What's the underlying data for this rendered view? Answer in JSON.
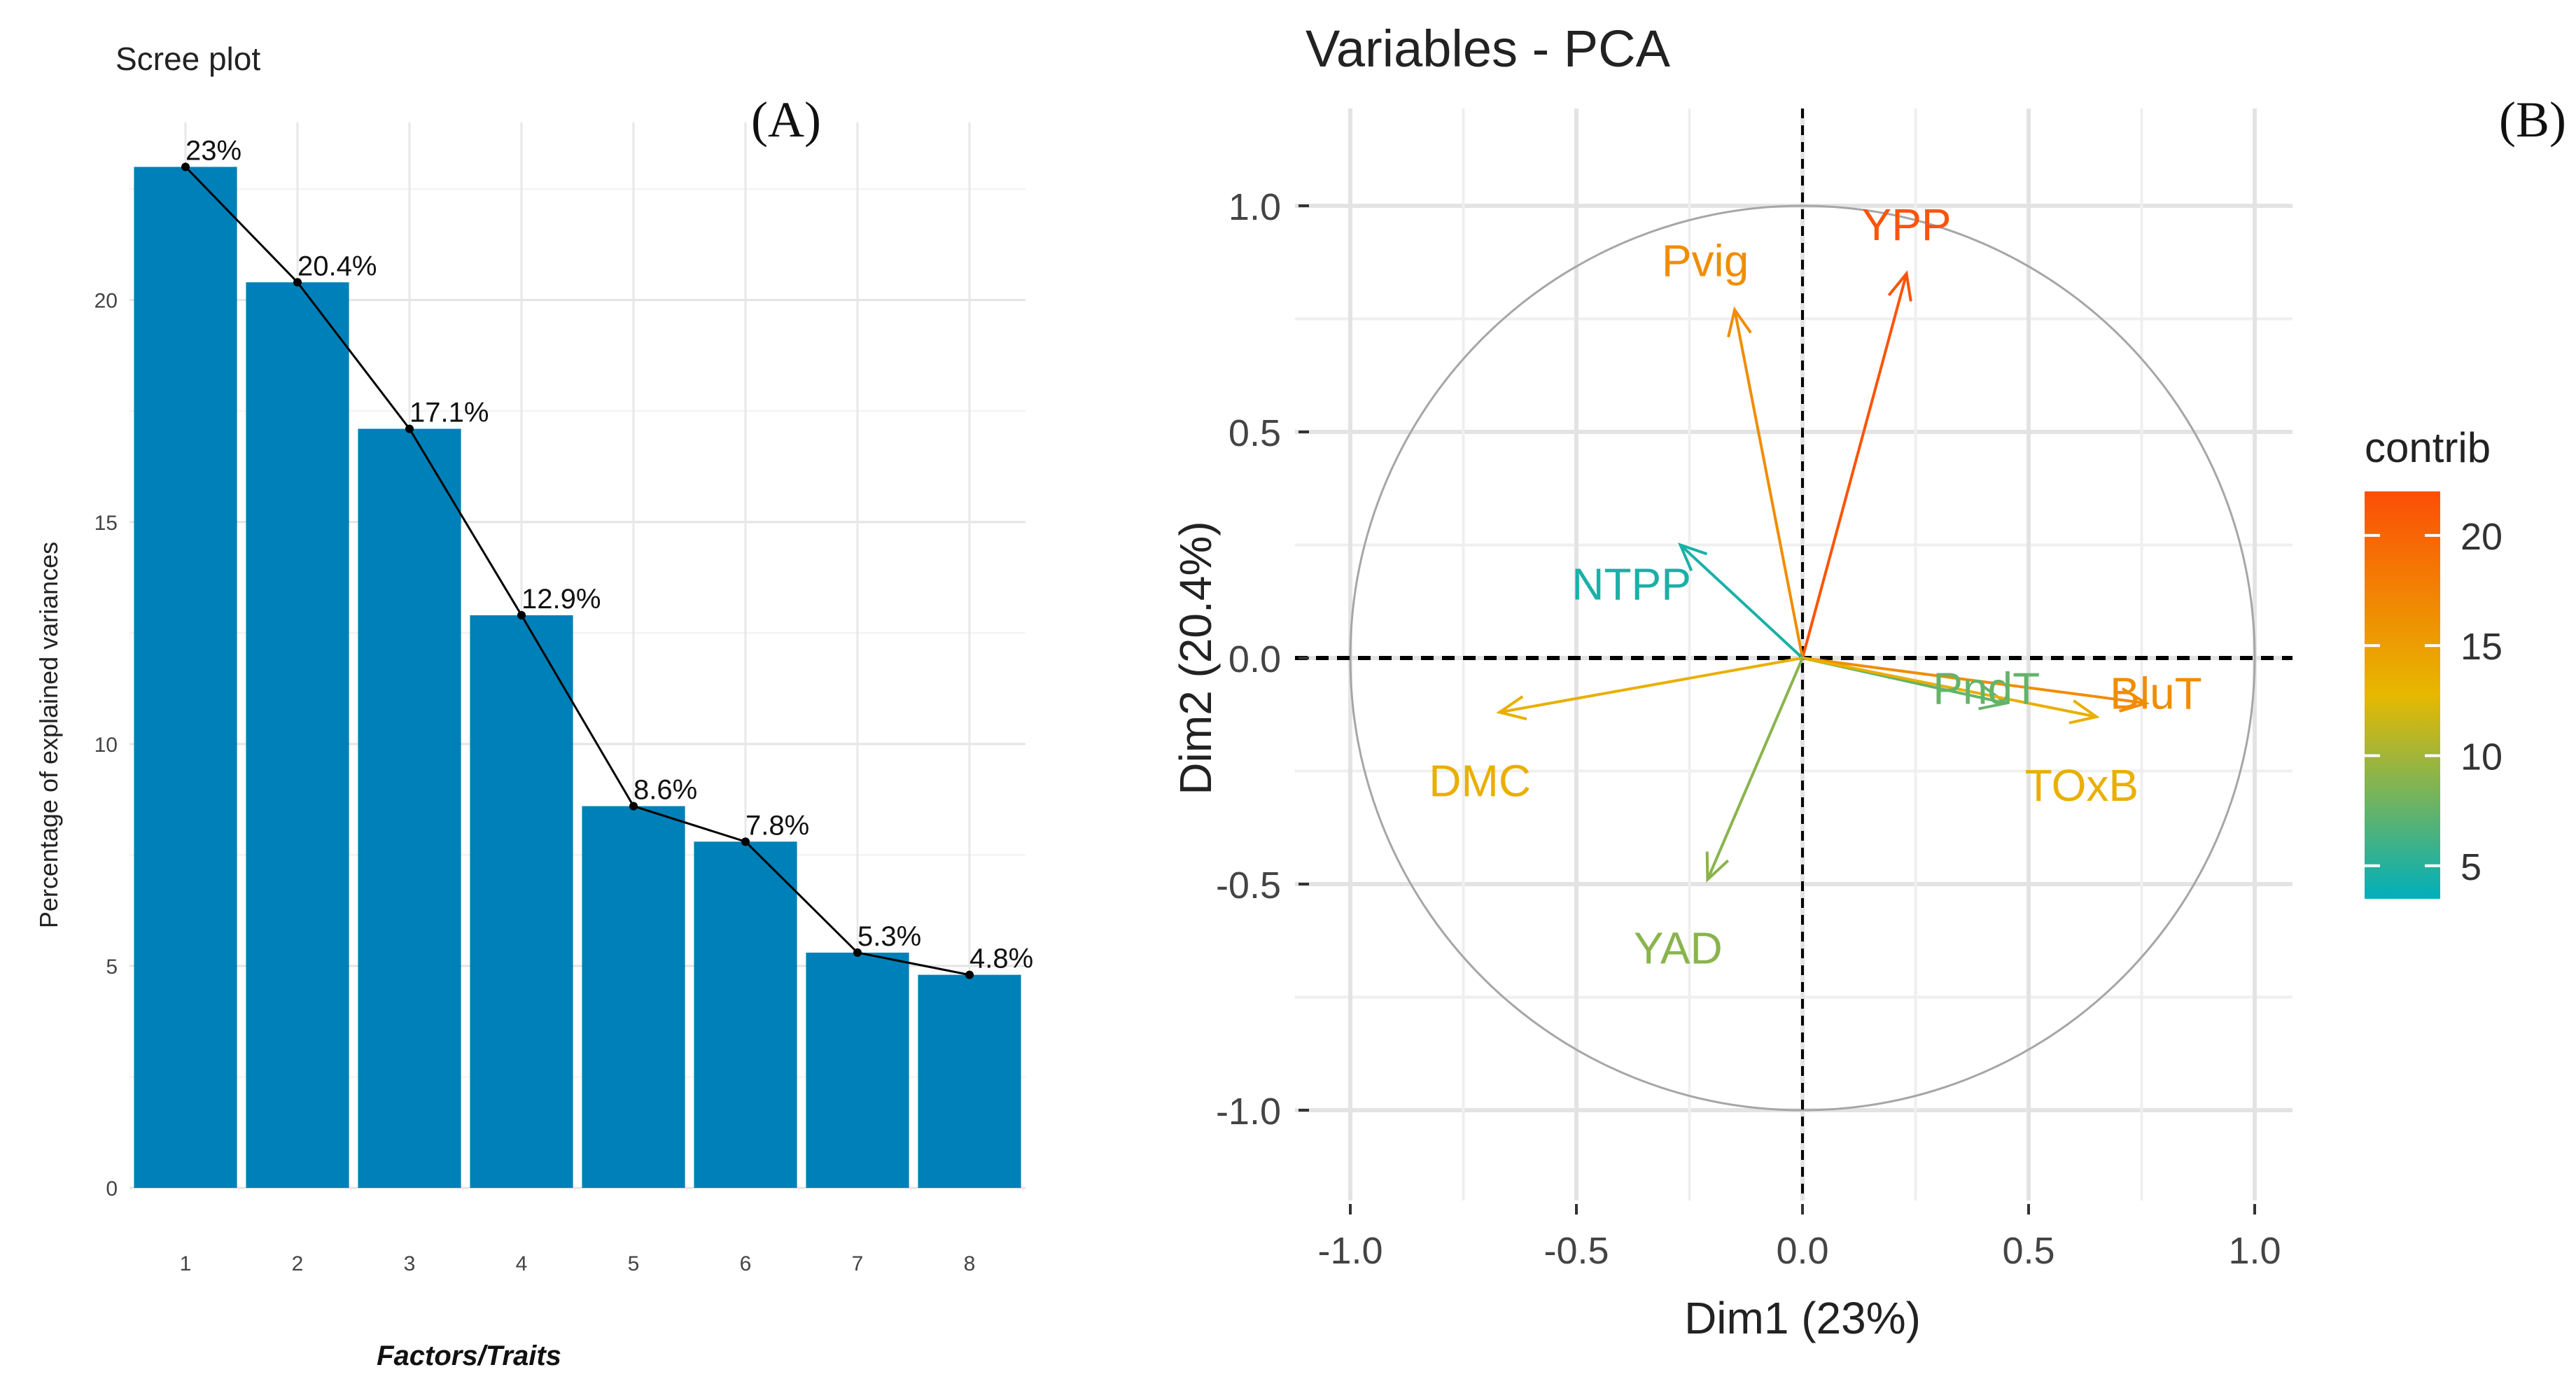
{
  "panel_a": {
    "title": "Scree plot",
    "panel_label": "(A)",
    "chart_data": {
      "type": "bar",
      "title": "Scree plot",
      "xlabel": "Factors/Traits",
      "ylabel": "Percentage of explained variances",
      "categories": [
        "1",
        "2",
        "3",
        "4",
        "5",
        "6",
        "7",
        "8"
      ],
      "values": [
        23,
        20.4,
        17.1,
        12.9,
        8.6,
        7.8,
        5.3,
        4.8
      ],
      "labels": [
        "23%",
        "20.4%",
        "17.1%",
        "12.9%",
        "8.6%",
        "7.8%",
        "5.3%",
        "4.8%"
      ],
      "ylim": [
        0,
        24
      ],
      "yticks": [
        0,
        5,
        10,
        15,
        20
      ],
      "grid": true,
      "bar_color": "#0080b8",
      "line_color": "#000000"
    }
  },
  "panel_b": {
    "title": "Variables - PCA",
    "panel_label": "(B)",
    "chart_data": {
      "type": "scatter",
      "subtype": "pca-variable-correlation-circle",
      "title": "Variables - PCA",
      "xlabel": "Dim1 (23%)",
      "ylabel": "Dim2 (20.4%)",
      "xlim": [
        -1.0,
        1.0
      ],
      "ylim": [
        -1.0,
        1.0
      ],
      "xticks": [
        "-1.0",
        "-0.5",
        "0.0",
        "0.5",
        "1.0"
      ],
      "yticks": [
        "1.0",
        "0.5",
        "0.0",
        "-0.5",
        "-1.0"
      ],
      "grid": true,
      "unit_circle": true,
      "variables": [
        {
          "name": "YPP",
          "x": 0.23,
          "y": 0.85,
          "contrib": 21.5
        },
        {
          "name": "Pvig",
          "x": -0.15,
          "y": 0.77,
          "contrib": 16.5
        },
        {
          "name": "NTPP",
          "x": -0.27,
          "y": 0.25,
          "contrib": 4.5
        },
        {
          "name": "PndT",
          "x": 0.45,
          "y": -0.1,
          "contrib": 7.5
        },
        {
          "name": "BluT",
          "x": 0.76,
          "y": -0.1,
          "contrib": 16.5
        },
        {
          "name": "TOxB",
          "x": 0.65,
          "y": -0.13,
          "contrib": 13.5
        },
        {
          "name": "DMC",
          "x": -0.67,
          "y": -0.12,
          "contrib": 13.5
        },
        {
          "name": "YAD",
          "x": -0.21,
          "y": -0.49,
          "contrib": 9.0
        }
      ],
      "legend": {
        "title": "contrib",
        "position": "right",
        "ticks": [
          20,
          15,
          10,
          5
        ],
        "range": [
          3.5,
          22
        ],
        "gradient": [
          "#00AFBB",
          "#E7B800",
          "#FC4E07"
        ]
      }
    }
  }
}
